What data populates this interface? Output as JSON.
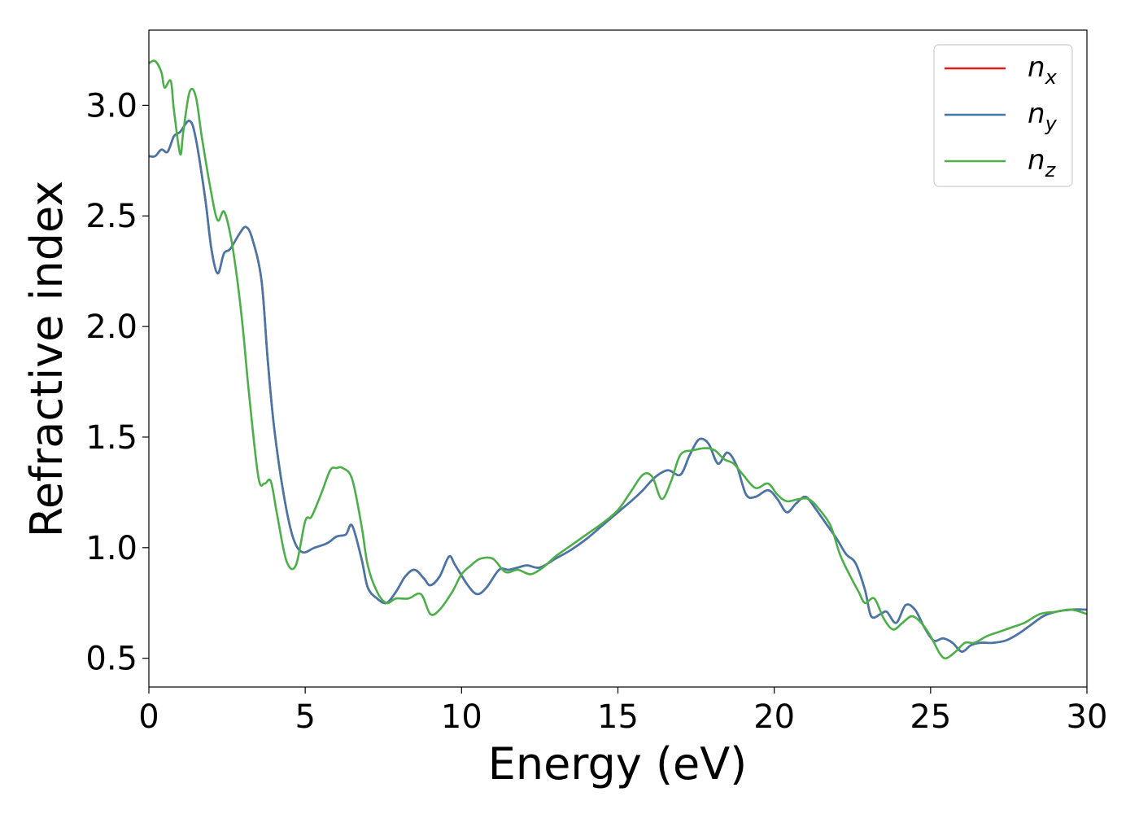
{
  "chart_data": {
    "type": "line",
    "xlabel": "Energy (eV)",
    "ylabel": "Refractive index",
    "xlim": [
      0,
      30
    ],
    "ylim": [
      0.37,
      3.34
    ],
    "xticks": [
      "0",
      "5",
      "10",
      "15",
      "20",
      "25",
      "30"
    ],
    "yticks": [
      "0.5",
      "1.0",
      "1.5",
      "2.0",
      "2.5",
      "3.0"
    ],
    "grid": false,
    "legend_position": "top-right",
    "series": [
      {
        "name": "n_x",
        "legend_base": "n",
        "legend_sub": "x",
        "color": "#e41a1c",
        "x": [
          0,
          0.2,
          0.4,
          0.6,
          0.8,
          1.0,
          1.3,
          1.5,
          1.8,
          2.0,
          2.2,
          2.4,
          2.6,
          2.9,
          3.1,
          3.3,
          3.6,
          3.8,
          4.0,
          4.3,
          4.6,
          4.9,
          5.3,
          5.7,
          6.0,
          6.3,
          6.5,
          6.8,
          7.0,
          7.3,
          7.6,
          7.9,
          8.2,
          8.5,
          8.8,
          9.0,
          9.3,
          9.6,
          9.8,
          10.2,
          10.5,
          10.8,
          11.2,
          11.5,
          11.8,
          12.1,
          12.5,
          13.0,
          13.5,
          14.0,
          14.5,
          15.0,
          15.5,
          15.8,
          16.2,
          16.6,
          17.0,
          17.3,
          17.6,
          17.9,
          18.2,
          18.5,
          18.8,
          19.1,
          19.4,
          19.8,
          20.1,
          20.4,
          20.7,
          21.0,
          21.3,
          21.7,
          22.0,
          22.3,
          22.6,
          22.9,
          23.1,
          23.4,
          23.6,
          23.9,
          24.2,
          24.5,
          24.8,
          25.1,
          25.4,
          25.7,
          26.0,
          26.3,
          26.6,
          27.0,
          27.4,
          27.8,
          28.2,
          28.6,
          29.0,
          29.5,
          30
        ],
        "y": [
          2.77,
          2.77,
          2.8,
          2.79,
          2.86,
          2.88,
          2.93,
          2.85,
          2.58,
          2.35,
          2.24,
          2.33,
          2.35,
          2.42,
          2.45,
          2.4,
          2.21,
          1.85,
          1.55,
          1.25,
          1.05,
          0.98,
          1.0,
          1.02,
          1.05,
          1.06,
          1.1,
          0.95,
          0.82,
          0.77,
          0.75,
          0.8,
          0.87,
          0.9,
          0.86,
          0.83,
          0.87,
          0.96,
          0.92,
          0.83,
          0.79,
          0.82,
          0.9,
          0.9,
          0.91,
          0.92,
          0.91,
          0.95,
          0.99,
          1.04,
          1.1,
          1.16,
          1.22,
          1.26,
          1.32,
          1.35,
          1.33,
          1.42,
          1.49,
          1.47,
          1.38,
          1.43,
          1.37,
          1.24,
          1.23,
          1.26,
          1.22,
          1.16,
          1.2,
          1.23,
          1.18,
          1.1,
          1.04,
          0.97,
          0.93,
          0.81,
          0.69,
          0.7,
          0.71,
          0.66,
          0.74,
          0.72,
          0.64,
          0.58,
          0.59,
          0.57,
          0.53,
          0.56,
          0.57,
          0.57,
          0.58,
          0.61,
          0.65,
          0.69,
          0.71,
          0.72,
          0.72
        ]
      },
      {
        "name": "n_y",
        "legend_base": "n",
        "legend_sub": "y",
        "color": "#4477aa",
        "x": [
          0,
          0.2,
          0.4,
          0.6,
          0.8,
          1.0,
          1.3,
          1.5,
          1.8,
          2.0,
          2.2,
          2.4,
          2.6,
          2.9,
          3.1,
          3.3,
          3.6,
          3.8,
          4.0,
          4.3,
          4.6,
          4.9,
          5.3,
          5.7,
          6.0,
          6.3,
          6.5,
          6.8,
          7.0,
          7.3,
          7.6,
          7.9,
          8.2,
          8.5,
          8.8,
          9.0,
          9.3,
          9.6,
          9.8,
          10.2,
          10.5,
          10.8,
          11.2,
          11.5,
          11.8,
          12.1,
          12.5,
          13.0,
          13.5,
          14.0,
          14.5,
          15.0,
          15.5,
          15.8,
          16.2,
          16.6,
          17.0,
          17.3,
          17.6,
          17.9,
          18.2,
          18.5,
          18.8,
          19.1,
          19.4,
          19.8,
          20.1,
          20.4,
          20.7,
          21.0,
          21.3,
          21.7,
          22.0,
          22.3,
          22.6,
          22.9,
          23.1,
          23.4,
          23.6,
          23.9,
          24.2,
          24.5,
          24.8,
          25.1,
          25.4,
          25.7,
          26.0,
          26.3,
          26.6,
          27.0,
          27.4,
          27.8,
          28.2,
          28.6,
          29.0,
          29.5,
          30
        ],
        "y": [
          2.77,
          2.77,
          2.8,
          2.79,
          2.86,
          2.88,
          2.93,
          2.85,
          2.58,
          2.35,
          2.24,
          2.33,
          2.35,
          2.42,
          2.45,
          2.4,
          2.21,
          1.85,
          1.55,
          1.25,
          1.05,
          0.98,
          1.0,
          1.02,
          1.05,
          1.06,
          1.1,
          0.95,
          0.82,
          0.77,
          0.75,
          0.8,
          0.87,
          0.9,
          0.86,
          0.83,
          0.87,
          0.96,
          0.92,
          0.83,
          0.79,
          0.82,
          0.9,
          0.9,
          0.91,
          0.92,
          0.91,
          0.95,
          0.99,
          1.04,
          1.1,
          1.16,
          1.22,
          1.26,
          1.32,
          1.35,
          1.33,
          1.42,
          1.49,
          1.47,
          1.38,
          1.43,
          1.37,
          1.24,
          1.23,
          1.26,
          1.22,
          1.16,
          1.2,
          1.23,
          1.18,
          1.1,
          1.04,
          0.97,
          0.93,
          0.81,
          0.69,
          0.7,
          0.71,
          0.66,
          0.74,
          0.72,
          0.64,
          0.58,
          0.59,
          0.57,
          0.53,
          0.56,
          0.57,
          0.57,
          0.58,
          0.61,
          0.65,
          0.69,
          0.71,
          0.72,
          0.72
        ]
      },
      {
        "name": "n_z",
        "legend_base": "n",
        "legend_sub": "z",
        "color": "#4daf4a",
        "x": [
          0,
          0.2,
          0.4,
          0.5,
          0.7,
          0.8,
          1.0,
          1.1,
          1.3,
          1.5,
          1.7,
          2.0,
          2.2,
          2.4,
          2.6,
          2.8,
          3.0,
          3.2,
          3.5,
          3.7,
          3.9,
          4.1,
          4.4,
          4.7,
          5.0,
          5.2,
          5.5,
          5.8,
          6.0,
          6.2,
          6.5,
          6.8,
          7.0,
          7.3,
          7.6,
          7.9,
          8.3,
          8.7,
          9.0,
          9.3,
          9.7,
          10.0,
          10.3,
          10.6,
          11.0,
          11.4,
          11.8,
          12.2,
          12.6,
          13.0,
          13.5,
          14.0,
          14.5,
          15.0,
          15.4,
          15.8,
          16.1,
          16.4,
          16.7,
          17.0,
          17.4,
          17.8,
          18.1,
          18.4,
          18.7,
          19.0,
          19.4,
          19.8,
          20.1,
          20.4,
          20.8,
          21.1,
          21.4,
          21.8,
          22.1,
          22.4,
          22.7,
          22.9,
          23.2,
          23.5,
          23.8,
          24.1,
          24.4,
          24.7,
          25.0,
          25.3,
          25.5,
          25.8,
          26.1,
          26.4,
          26.8,
          27.2,
          27.6,
          28.0,
          28.5,
          29.0,
          29.5,
          30
        ],
        "y": [
          3.19,
          3.2,
          3.15,
          3.08,
          3.11,
          2.98,
          2.78,
          2.88,
          3.06,
          3.04,
          2.85,
          2.6,
          2.48,
          2.52,
          2.42,
          2.24,
          2.0,
          1.7,
          1.32,
          1.29,
          1.3,
          1.15,
          0.94,
          0.92,
          1.12,
          1.14,
          1.24,
          1.35,
          1.36,
          1.36,
          1.31,
          1.1,
          0.92,
          0.8,
          0.75,
          0.77,
          0.77,
          0.79,
          0.7,
          0.72,
          0.8,
          0.88,
          0.92,
          0.95,
          0.95,
          0.89,
          0.9,
          0.88,
          0.91,
          0.96,
          1.01,
          1.06,
          1.11,
          1.17,
          1.25,
          1.33,
          1.32,
          1.22,
          1.3,
          1.42,
          1.44,
          1.45,
          1.44,
          1.4,
          1.38,
          1.33,
          1.27,
          1.29,
          1.24,
          1.21,
          1.22,
          1.22,
          1.18,
          1.1,
          0.97,
          0.88,
          0.8,
          0.75,
          0.77,
          0.68,
          0.63,
          0.66,
          0.69,
          0.66,
          0.6,
          0.52,
          0.5,
          0.53,
          0.57,
          0.57,
          0.6,
          0.62,
          0.64,
          0.66,
          0.7,
          0.71,
          0.72,
          0.7
        ]
      }
    ]
  }
}
